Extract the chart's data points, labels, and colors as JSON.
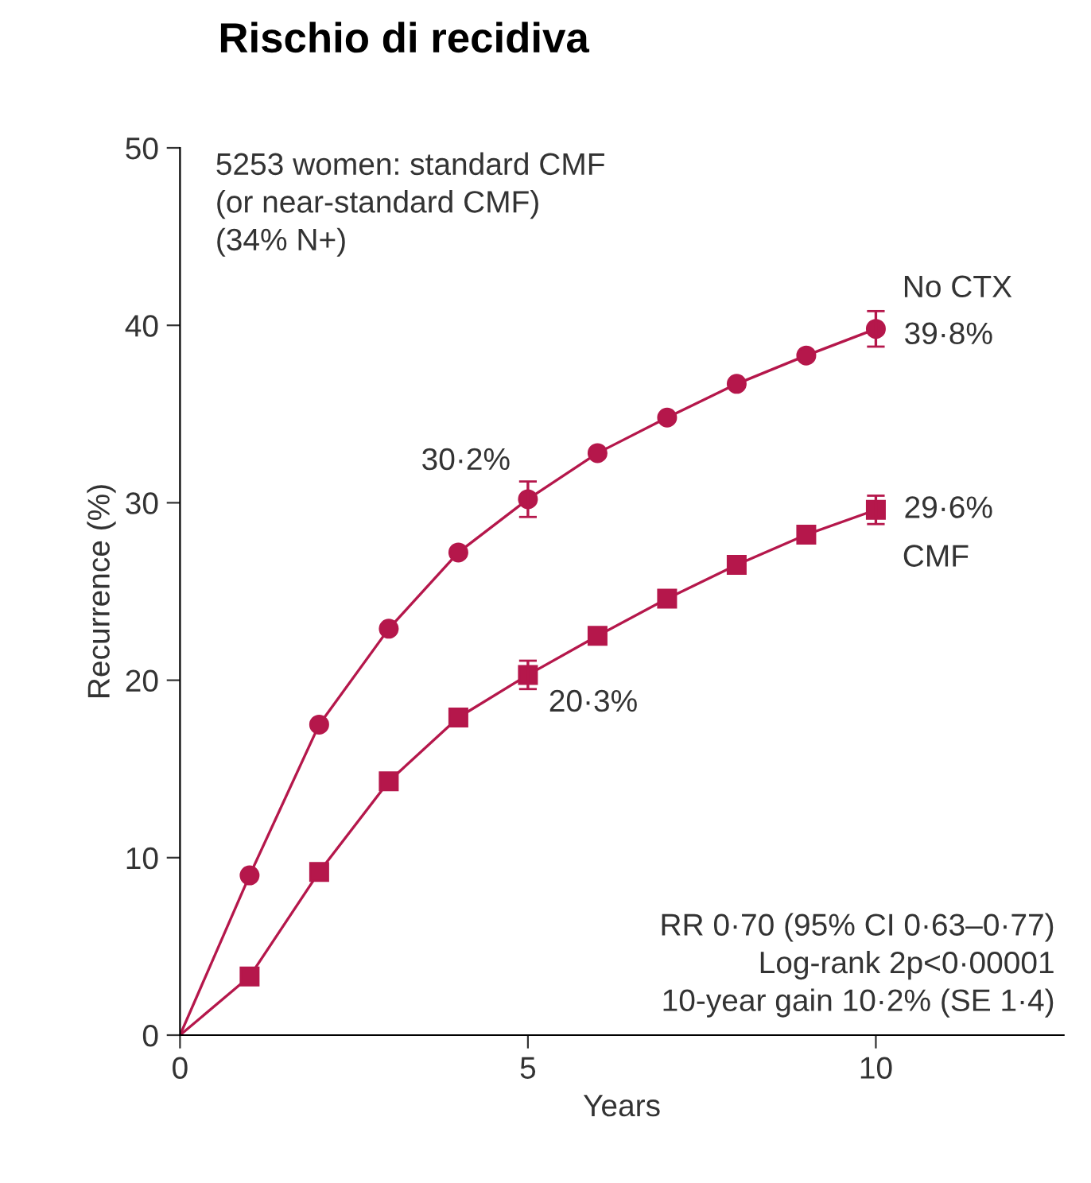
{
  "chart_data": {
    "type": "line",
    "title": "Rischio di recidiva",
    "xlabel": "Years",
    "ylabel": "Recurrence (%)",
    "x": [
      0,
      1,
      2,
      3,
      4,
      5,
      6,
      7,
      8,
      9,
      10
    ],
    "series": [
      {
        "name": "No CTX",
        "color": "#b5174b",
        "marker": "circle",
        "values": [
          0,
          9.0,
          17.5,
          22.9,
          27.2,
          30.2,
          32.8,
          34.8,
          36.7,
          38.3,
          39.8
        ],
        "errors": [
          null,
          null,
          null,
          null,
          null,
          1.0,
          null,
          null,
          null,
          null,
          1.0
        ]
      },
      {
        "name": "CMF",
        "color": "#b5174b",
        "marker": "square",
        "values": [
          0,
          3.3,
          9.2,
          14.3,
          17.9,
          20.3,
          22.5,
          24.6,
          26.5,
          28.2,
          29.6
        ],
        "errors": [
          null,
          null,
          null,
          null,
          null,
          0.8,
          null,
          null,
          null,
          null,
          0.8
        ]
      }
    ],
    "xlim": [
      0,
      12.7
    ],
    "ylim": [
      0,
      50
    ],
    "xticks": [
      0,
      5,
      10
    ],
    "yticks": [
      0,
      10,
      20,
      30,
      40,
      50
    ],
    "grid": false,
    "annotations": [
      "5253 women: standard CMF\n(or near-standard CMF)\n(34% N+)",
      "RR 0·70 (95% CI 0·63–0·77)\nLog-rank 2p<0·00001\n10-year gain 10·2% (SE 1·4)",
      "30·2%",
      "39·8%",
      "20·3%",
      "29·6%"
    ]
  }
}
